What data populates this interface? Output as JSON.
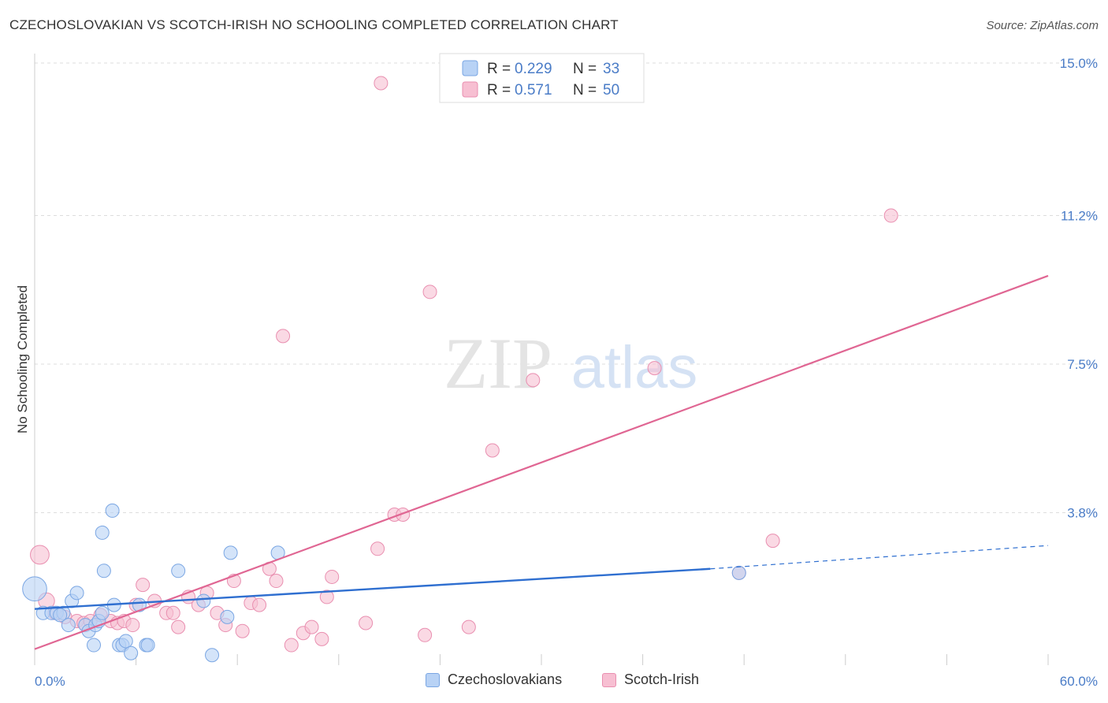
{
  "title": "CZECHOSLOVAKIAN VS SCOTCH-IRISH NO SCHOOLING COMPLETED CORRELATION CHART",
  "source": "Source: ZipAtlas.com",
  "watermark": {
    "zip": "ZIP",
    "atlas": "atlas"
  },
  "colors": {
    "blue_fill": "#b8d2f5",
    "blue_stroke": "#7aa6e3",
    "blue_line": "#2f6fd0",
    "pink_fill": "#f7bfd2",
    "pink_stroke": "#e98fb0",
    "pink_line": "#e06693",
    "axis_label": "#4a7cc7",
    "grid": "#dddddd"
  },
  "legend": {
    "r_label": "R =",
    "n_label": "N =",
    "rows": [
      {
        "series": "blue",
        "r": "0.229",
        "n": "33"
      },
      {
        "series": "pink",
        "r": "0.571",
        "n": "50"
      }
    ]
  },
  "chart_data": {
    "type": "scatter",
    "title": "CZECHOSLOVAKIAN VS SCOTCH-IRISH NO SCHOOLING COMPLETED CORRELATION CHART",
    "xlabel": "",
    "ylabel": "No Schooling Completed",
    "xlim": [
      0,
      60
    ],
    "ylim": [
      0,
      15
    ],
    "x_tick_labels": [
      "0.0%",
      "60.0%"
    ],
    "y_ticks": [
      3.8,
      7.5,
      11.2,
      15.0
    ],
    "y_tick_labels": [
      "3.8%",
      "7.5%",
      "11.2%",
      "15.0%"
    ],
    "grid": true,
    "legend_position": "top-center",
    "series": [
      {
        "name": "Czechoslovakians",
        "color": "#b8d2f5",
        "trend": {
          "x0": 0,
          "y0": 1.4,
          "x1": 40,
          "y1": 2.4,
          "dash_to_x": 60,
          "dash_to_y": 2.98
        },
        "points": [
          {
            "x": 0.0,
            "y": 1.9,
            "s": 1.8
          },
          {
            "x": 0.5,
            "y": 1.3,
            "s": 1
          },
          {
            "x": 1.0,
            "y": 1.3,
            "s": 1
          },
          {
            "x": 1.3,
            "y": 1.3,
            "s": 1
          },
          {
            "x": 1.7,
            "y": 1.3,
            "s": 1
          },
          {
            "x": 2.0,
            "y": 1.0,
            "s": 1
          },
          {
            "x": 2.2,
            "y": 1.6,
            "s": 1
          },
          {
            "x": 2.5,
            "y": 1.8,
            "s": 1
          },
          {
            "x": 3.0,
            "y": 1.0,
            "s": 1
          },
          {
            "x": 3.2,
            "y": 0.85,
            "s": 1
          },
          {
            "x": 3.5,
            "y": 0.5,
            "s": 1
          },
          {
            "x": 3.6,
            "y": 1.0,
            "s": 1
          },
          {
            "x": 3.8,
            "y": 1.1,
            "s": 1
          },
          {
            "x": 4.0,
            "y": 1.3,
            "s": 1
          },
          {
            "x": 4.0,
            "y": 3.3,
            "s": 1
          },
          {
            "x": 4.1,
            "y": 2.35,
            "s": 1
          },
          {
            "x": 4.6,
            "y": 3.85,
            "s": 1
          },
          {
            "x": 4.7,
            "y": 1.5,
            "s": 1
          },
          {
            "x": 5.0,
            "y": 0.5,
            "s": 1
          },
          {
            "x": 5.2,
            "y": 0.5,
            "s": 1
          },
          {
            "x": 5.4,
            "y": 0.6,
            "s": 1
          },
          {
            "x": 5.7,
            "y": 0.3,
            "s": 1
          },
          {
            "x": 6.2,
            "y": 1.5,
            "s": 1
          },
          {
            "x": 6.6,
            "y": 0.5,
            "s": 1
          },
          {
            "x": 6.7,
            "y": 0.5,
            "s": 1
          },
          {
            "x": 8.5,
            "y": 2.35,
            "s": 1
          },
          {
            "x": 10.0,
            "y": 1.6,
            "s": 1
          },
          {
            "x": 10.5,
            "y": 0.25,
            "s": 1
          },
          {
            "x": 11.4,
            "y": 1.2,
            "s": 1
          },
          {
            "x": 11.6,
            "y": 2.8,
            "s": 1
          },
          {
            "x": 14.4,
            "y": 2.8,
            "s": 1
          },
          {
            "x": 41.7,
            "y": 2.3,
            "s": 1
          },
          {
            "x": 1.5,
            "y": 1.25,
            "s": 1
          }
        ]
      },
      {
        "name": "Scotch-Irish",
        "color": "#f7bfd2",
        "trend": {
          "x0": 0,
          "y0": 0.4,
          "x1": 60,
          "y1": 9.7
        },
        "points": [
          {
            "x": 0.3,
            "y": 2.75,
            "s": 1.4
          },
          {
            "x": 0.7,
            "y": 1.6,
            "s": 1.2
          },
          {
            "x": 1.2,
            "y": 1.3,
            "s": 1
          },
          {
            "x": 1.8,
            "y": 1.2,
            "s": 1
          },
          {
            "x": 2.5,
            "y": 1.1,
            "s": 1
          },
          {
            "x": 2.9,
            "y": 1.05,
            "s": 1
          },
          {
            "x": 3.3,
            "y": 1.1,
            "s": 1
          },
          {
            "x": 3.9,
            "y": 1.25,
            "s": 1
          },
          {
            "x": 4.5,
            "y": 1.1,
            "s": 1
          },
          {
            "x": 4.9,
            "y": 1.05,
            "s": 1
          },
          {
            "x": 5.3,
            "y": 1.1,
            "s": 1
          },
          {
            "x": 5.8,
            "y": 1.0,
            "s": 1
          },
          {
            "x": 6.0,
            "y": 1.5,
            "s": 1
          },
          {
            "x": 6.4,
            "y": 2.0,
            "s": 1
          },
          {
            "x": 7.1,
            "y": 1.6,
            "s": 1
          },
          {
            "x": 7.8,
            "y": 1.3,
            "s": 1
          },
          {
            "x": 8.2,
            "y": 1.3,
            "s": 1
          },
          {
            "x": 8.5,
            "y": 0.95,
            "s": 1
          },
          {
            "x": 9.1,
            "y": 1.7,
            "s": 1
          },
          {
            "x": 9.7,
            "y": 1.5,
            "s": 1
          },
          {
            "x": 10.2,
            "y": 1.8,
            "s": 1
          },
          {
            "x": 10.8,
            "y": 1.3,
            "s": 1
          },
          {
            "x": 11.3,
            "y": 1.0,
            "s": 1
          },
          {
            "x": 11.8,
            "y": 2.1,
            "s": 1
          },
          {
            "x": 12.3,
            "y": 0.85,
            "s": 1
          },
          {
            "x": 12.8,
            "y": 1.55,
            "s": 1
          },
          {
            "x": 13.3,
            "y": 1.5,
            "s": 1
          },
          {
            "x": 13.9,
            "y": 2.4,
            "s": 1
          },
          {
            "x": 14.3,
            "y": 2.1,
            "s": 1
          },
          {
            "x": 14.7,
            "y": 8.2,
            "s": 1
          },
          {
            "x": 15.2,
            "y": 0.5,
            "s": 1
          },
          {
            "x": 15.9,
            "y": 0.8,
            "s": 1
          },
          {
            "x": 16.4,
            "y": 0.95,
            "s": 1
          },
          {
            "x": 17.0,
            "y": 0.65,
            "s": 1
          },
          {
            "x": 17.3,
            "y": 1.7,
            "s": 1
          },
          {
            "x": 17.6,
            "y": 2.2,
            "s": 1
          },
          {
            "x": 19.6,
            "y": 1.05,
            "s": 1
          },
          {
            "x": 20.3,
            "y": 2.9,
            "s": 1
          },
          {
            "x": 20.5,
            "y": 14.5,
            "s": 1
          },
          {
            "x": 21.3,
            "y": 3.75,
            "s": 1
          },
          {
            "x": 21.8,
            "y": 3.75,
            "s": 1
          },
          {
            "x": 23.1,
            "y": 0.75,
            "s": 1
          },
          {
            "x": 23.4,
            "y": 9.3,
            "s": 1
          },
          {
            "x": 25.7,
            "y": 0.95,
            "s": 1
          },
          {
            "x": 27.1,
            "y": 5.35,
            "s": 1
          },
          {
            "x": 29.5,
            "y": 7.1,
            "s": 1
          },
          {
            "x": 36.7,
            "y": 7.4,
            "s": 1
          },
          {
            "x": 41.7,
            "y": 2.3,
            "s": 1
          },
          {
            "x": 43.7,
            "y": 3.1,
            "s": 1
          },
          {
            "x": 50.7,
            "y": 11.2,
            "s": 1
          }
        ]
      }
    ]
  }
}
